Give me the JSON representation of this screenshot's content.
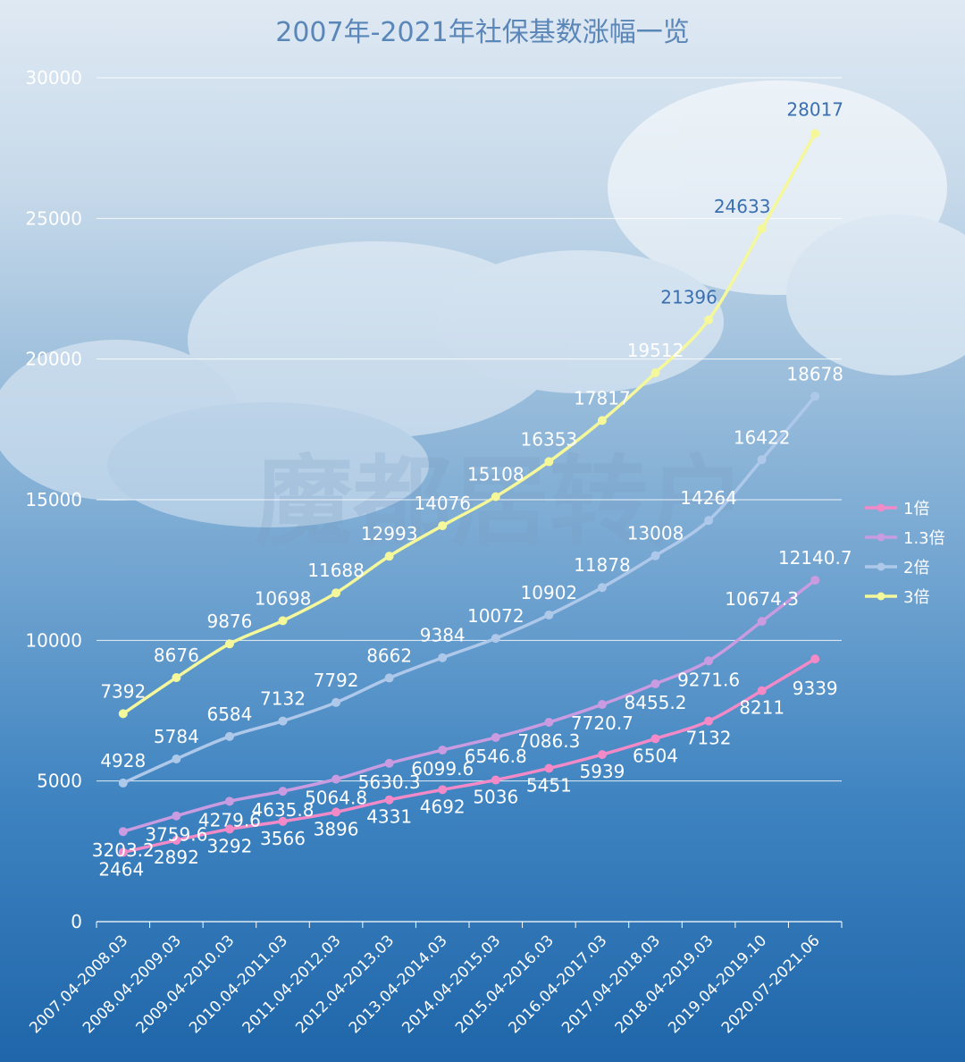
{
  "title": "2007年-2021年社保基数涨幅一览",
  "watermark": "魔都居转户",
  "colors": {
    "s1": "#f28ac8",
    "s13": "#c99be0",
    "s2": "#aec8ea",
    "s3": "#f4f79a",
    "grid": "#ffffff",
    "axis": "#ffffff"
  },
  "chart_data": {
    "type": "line",
    "title": "2007年-2021年社保基数涨幅一览",
    "categories": [
      "2007.04-2008.03",
      "2008.04-2009.03",
      "2009.04-2010.03",
      "2010.04-2011.03",
      "2011.04-2012.03",
      "2012.04-2013.03",
      "2013.04-2014.03",
      "2014.04-2015.03",
      "2015.04-2016.03",
      "2016.04-2017.03",
      "2017.04-2018.03",
      "2018.04-2019.03",
      "2019.04-2019.10",
      "2020.07-2021.06"
    ],
    "y_ticks": [
      "0",
      "5000",
      "10000",
      "15000",
      "20000",
      "25000",
      "30000"
    ],
    "ylim": [
      0,
      30000
    ],
    "grid": true,
    "legend_position": "right",
    "series": [
      {
        "name": "1倍",
        "values": [
          2464,
          2892,
          3292,
          3566,
          3896,
          4331,
          4692,
          5036,
          5451,
          5939,
          6504,
          7132,
          8211,
          9339
        ],
        "labels": [
          "2464",
          "2892",
          "3292",
          "3566",
          "3896",
          "4331",
          "4692",
          "5036",
          "5451",
          "5939",
          "6504",
          "7132",
          "8211",
          "9339"
        ]
      },
      {
        "name": "1.3倍",
        "values": [
          3203.2,
          3759.6,
          4279.6,
          4635.8,
          5064.8,
          5630.3,
          6099.6,
          6546.8,
          7086.3,
          7720.7,
          8455.2,
          9271.6,
          10674.3,
          12140.7
        ],
        "labels": [
          "3203.2",
          "3759.6",
          "4279.6",
          "4635.8",
          "5064.8",
          "5630.3",
          "6099.6",
          "6546.8",
          "7086.3",
          "7720.7",
          "8455.2",
          "9271.6",
          "10674.3",
          "12140.7"
        ]
      },
      {
        "name": "2倍",
        "values": [
          4928,
          5784,
          6584,
          7132,
          7792,
          8662,
          9384,
          10072,
          10902,
          11878,
          13008,
          14264,
          16422,
          18678
        ],
        "labels": [
          "4928",
          "5784",
          "6584",
          "7132",
          "7792",
          "8662",
          "9384",
          "10072",
          "10902",
          "11878",
          "13008",
          "14264",
          "16422",
          "18678"
        ]
      },
      {
        "name": "3倍",
        "values": [
          7392,
          8676,
          9876,
          10698,
          11688,
          12993,
          14076,
          15108,
          16353,
          17817,
          19512,
          21396,
          24633,
          28017
        ],
        "labels": [
          "7392",
          "8676",
          "9876",
          "10698",
          "11688",
          "12993",
          "14076",
          "15108",
          "16353",
          "17817",
          "19512",
          "21396",
          "24633",
          "28017"
        ]
      }
    ]
  }
}
